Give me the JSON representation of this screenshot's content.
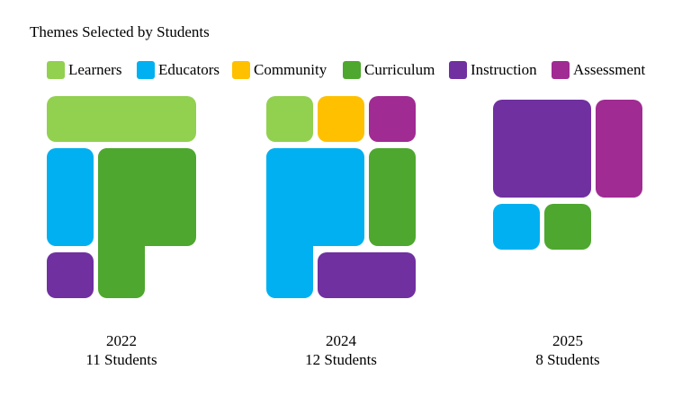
{
  "chart_data": {
    "type": "waffle",
    "title": "Themes Selected by Students",
    "series": [
      {
        "name": "Learners",
        "color": "#92d050"
      },
      {
        "name": "Educators",
        "color": "#00b0f0"
      },
      {
        "name": "Community",
        "color": "#ffc000"
      },
      {
        "name": "Curriculum",
        "color": "#4ea72e"
      },
      {
        "name": "Instruction",
        "color": "#7030a0"
      },
      {
        "name": "Assessment",
        "color": "#a02b93"
      }
    ],
    "panels": [
      {
        "title": "2022",
        "subtitle": "11 Students",
        "values": [
          3,
          2,
          0,
          5,
          1,
          0
        ]
      },
      {
        "title": "2024",
        "subtitle": "12 Students",
        "values": [
          1,
          5,
          1,
          2,
          2,
          1
        ]
      },
      {
        "title": "2025",
        "subtitle": "8 Students",
        "values": [
          0,
          1,
          0,
          1,
          4,
          2
        ]
      }
    ]
  }
}
